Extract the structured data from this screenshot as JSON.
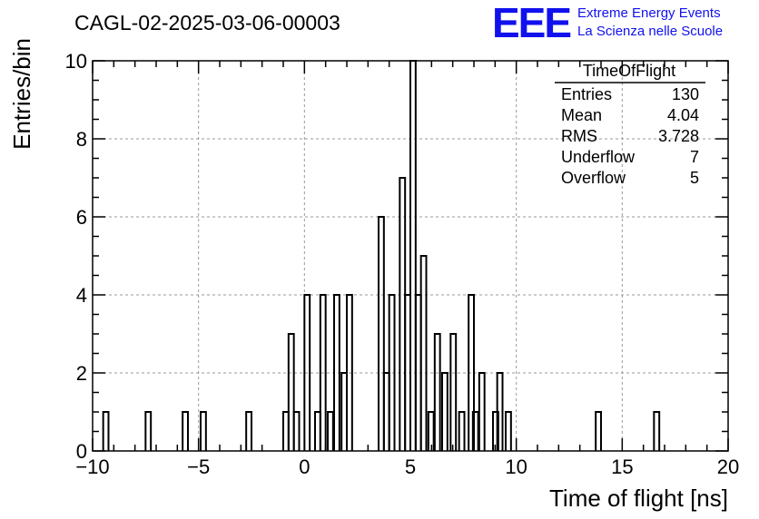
{
  "header": {
    "run_title": "CAGL-02-2025-03-06-00003",
    "logo_text": "EEE",
    "logo_line1": "Extreme Energy Events",
    "logo_line2": "La Scienza nelle Scuole",
    "logo_color": "#1111ee"
  },
  "stats": {
    "name": "TimeOfFlight",
    "rows": [
      {
        "label": "Entries",
        "value": "130"
      },
      {
        "label": "Mean",
        "value": "4.04"
      },
      {
        "label": "RMS",
        "value": "3.728"
      },
      {
        "label": "Underflow",
        "value": "7"
      },
      {
        "label": "Overflow",
        "value": "5"
      }
    ]
  },
  "chart_data": {
    "type": "bar",
    "histogram": true,
    "xlabel": "Time of flight [ns]",
    "ylabel": "Entries/bin",
    "xlim": [
      -10,
      20
    ],
    "ylim": [
      0,
      10
    ],
    "x_ticks": [
      -10,
      -5,
      0,
      5,
      10,
      15,
      20
    ],
    "y_ticks": [
      0,
      2,
      4,
      6,
      8,
      10
    ],
    "grid": true,
    "line_color": "#000000",
    "bin_width": 0.5,
    "bins": [
      {
        "x0": -9.5,
        "count": 1
      },
      {
        "x0": -7.5,
        "count": 1
      },
      {
        "x0": -5.75,
        "count": 1
      },
      {
        "x0": -4.9,
        "count": 1
      },
      {
        "x0": -2.75,
        "count": 1
      },
      {
        "x0": -1.0,
        "count": 1
      },
      {
        "x0": -0.75,
        "count": 3
      },
      {
        "x0": -0.5,
        "count": 1
      },
      {
        "x0": 0.0,
        "count": 4
      },
      {
        "x0": 0.5,
        "count": 1
      },
      {
        "x0": 0.75,
        "count": 4
      },
      {
        "x0": 1.1,
        "count": 1
      },
      {
        "x0": 1.4,
        "count": 4
      },
      {
        "x0": 1.75,
        "count": 2
      },
      {
        "x0": 2.0,
        "count": 4
      },
      {
        "x0": 3.5,
        "count": 6
      },
      {
        "x0": 3.75,
        "count": 2
      },
      {
        "x0": 4.0,
        "count": 4
      },
      {
        "x0": 4.5,
        "count": 7
      },
      {
        "x0": 4.75,
        "count": 4
      },
      {
        "x0": 5.0,
        "count": 10
      },
      {
        "x0": 5.25,
        "count": 4
      },
      {
        "x0": 5.5,
        "count": 5
      },
      {
        "x0": 5.85,
        "count": 1
      },
      {
        "x0": 6.15,
        "count": 3
      },
      {
        "x0": 6.5,
        "count": 2
      },
      {
        "x0": 6.9,
        "count": 3
      },
      {
        "x0": 7.3,
        "count": 1
      },
      {
        "x0": 7.75,
        "count": 4
      },
      {
        "x0": 7.95,
        "count": 1
      },
      {
        "x0": 8.25,
        "count": 2
      },
      {
        "x0": 8.9,
        "count": 1
      },
      {
        "x0": 9.1,
        "count": 2
      },
      {
        "x0": 9.5,
        "count": 1
      },
      {
        "x0": 13.75,
        "count": 1
      },
      {
        "x0": 16.5,
        "count": 1
      }
    ]
  }
}
